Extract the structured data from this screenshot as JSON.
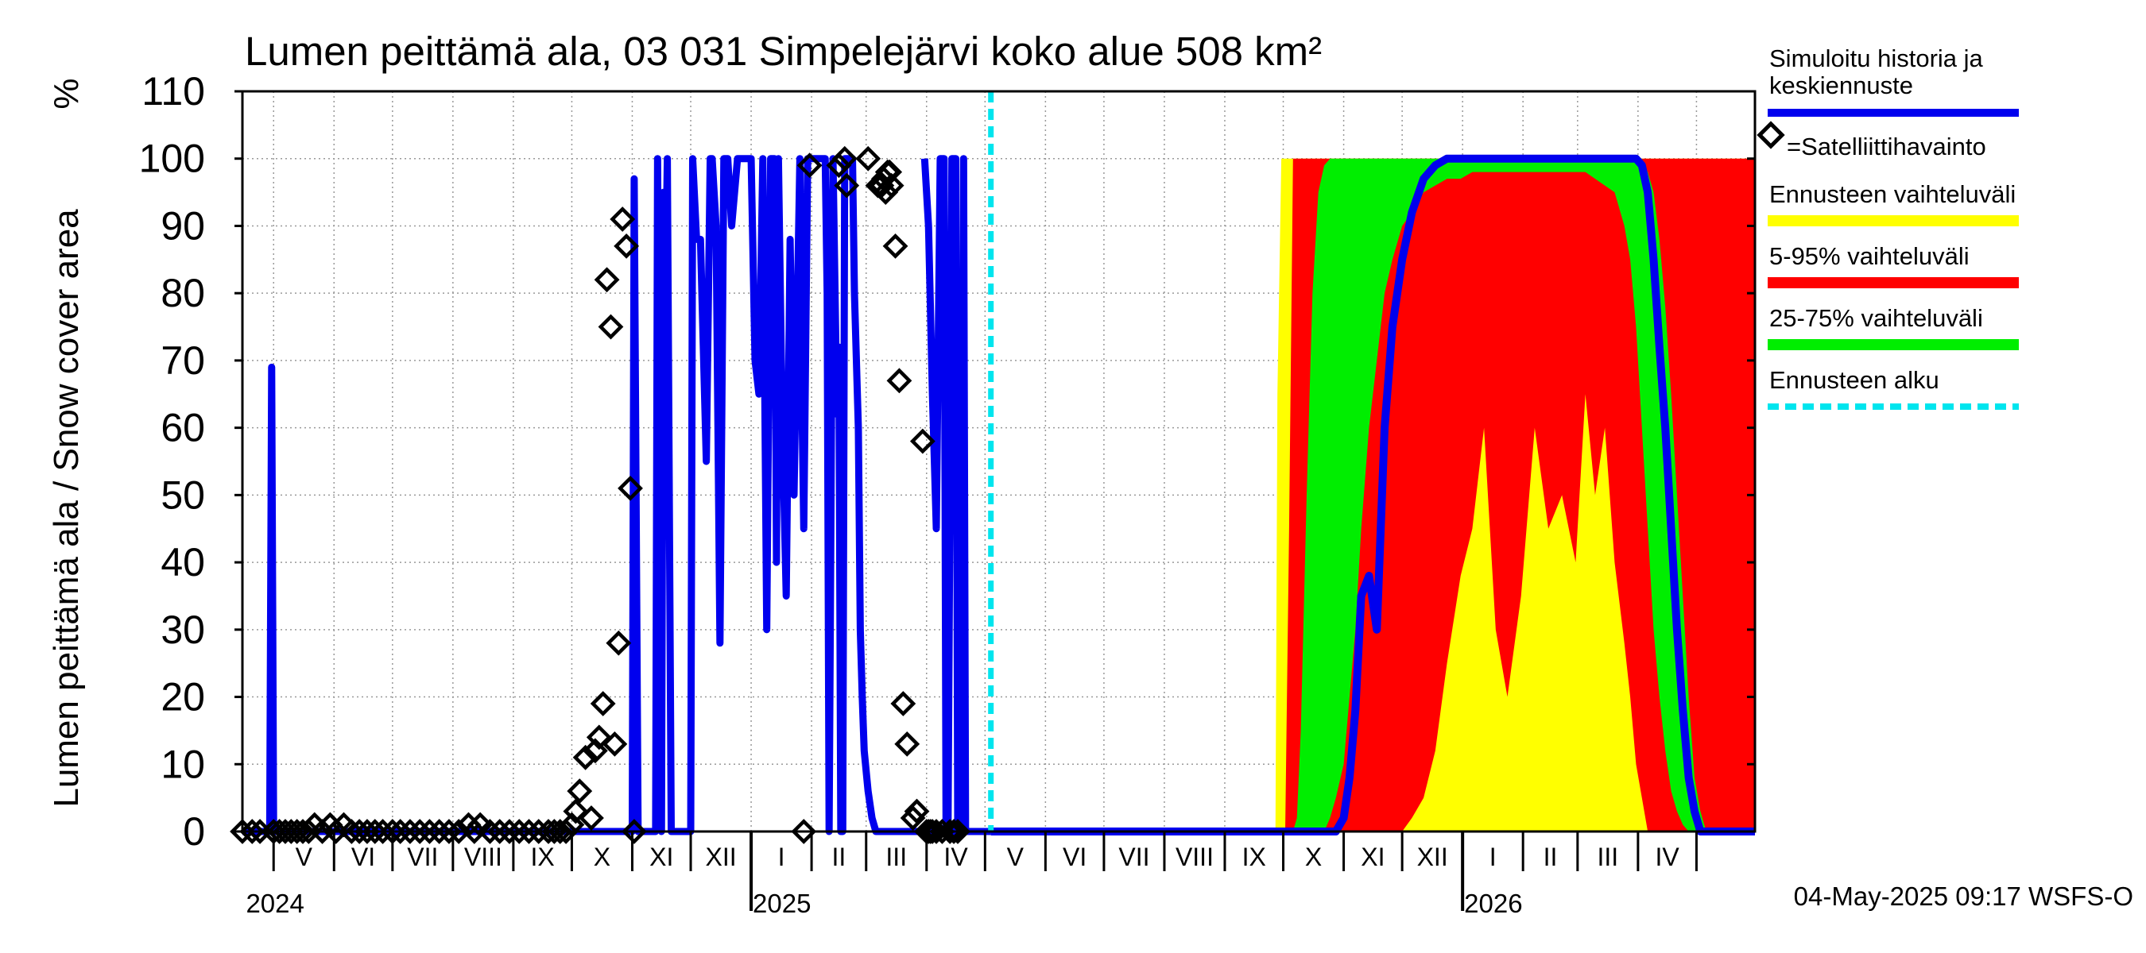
{
  "chart_data": {
    "type": "area",
    "title": "Lumen peittämä ala, 03 031 Simpelejärvi koko alue 508 km²",
    "ylabel": "Lumen peittämä ala / Snow cover area",
    "yunit": "%",
    "ylim": [
      0,
      110
    ],
    "yticks": [
      0,
      10,
      20,
      30,
      40,
      50,
      60,
      70,
      80,
      90,
      100,
      110
    ],
    "xlim": [
      "2024-04-15",
      "2026-05-31"
    ],
    "month_labels": [
      "V",
      "VI",
      "VII",
      "VIII",
      "IX",
      "X",
      "XI",
      "XII",
      "I",
      "II",
      "III",
      "IV",
      "V",
      "VI",
      "VII",
      "VIII",
      "IX",
      "X",
      "XI",
      "XII",
      "I",
      "II",
      "III",
      "IV"
    ],
    "year_labels": [
      "2024",
      "2025",
      "2026"
    ],
    "grid": true,
    "legend_position": "right",
    "legend": {
      "sim": "Simuloitu historia ja keskiennuste",
      "sat": "=Satelliittihavainto",
      "range": "Ennusteen vaihteluväli",
      "p5_95": "5-95% vaihteluväli",
      "p25_75": "25-75% vaihteluväli",
      "start": "Ennusteen alku"
    },
    "forecast_start": "2025-05-04",
    "timestamp": "04-May-2025 09:17 WSFS-O",
    "colors": {
      "sim": "#0000ee",
      "range": "#ffff00",
      "p5_95": "#ff0000",
      "p25_75": "#00ee00",
      "start": "#00e5ee"
    },
    "series_history": {
      "name": "Simuloitu historia ja keskiennuste",
      "x": [
        "2024-04-15",
        "2024-04-29",
        "2024-04-30",
        "2024-05-01",
        "2024-05-02",
        "2024-05-03",
        "2024-10-31",
        "2024-11-01",
        "2024-11-02",
        "2024-11-04",
        "2024-11-06",
        "2024-11-07",
        "2024-11-08",
        "2024-11-13",
        "2024-11-14",
        "2024-11-16",
        "2024-11-17",
        "2024-11-18",
        "2024-11-19",
        "2024-11-21",
        "2024-11-22",
        "2024-11-23",
        "2024-11-25",
        "2024-11-26",
        "2024-12-01",
        "2024-12-02",
        "2024-12-04",
        "2024-12-06",
        "2024-12-09",
        "2024-12-11",
        "2024-12-12",
        "2024-12-14",
        "2024-12-16",
        "2024-12-18",
        "2024-12-19",
        "2024-12-20",
        "2024-12-22",
        "2024-12-25",
        "2024-12-27",
        "2024-12-29",
        "2024-12-31",
        "2025-01-01",
        "2025-01-03",
        "2025-01-05",
        "2025-01-07",
        "2025-01-09",
        "2025-01-11",
        "2025-01-13",
        "2025-01-14",
        "2025-01-15",
        "2025-01-17",
        "2025-01-19",
        "2025-01-21",
        "2025-01-23",
        "2025-01-26",
        "2025-01-27",
        "2025-01-28",
        "2025-01-30",
        "2025-02-01",
        "2025-02-02",
        "2025-02-04",
        "2025-02-06",
        "2025-02-08",
        "2025-02-09",
        "2025-02-10",
        "2025-02-12",
        "2025-02-14",
        "2025-02-15",
        "2025-02-16",
        "2025-02-17",
        "2025-02-18",
        "2025-02-20",
        "2025-02-21",
        "2025-02-22",
        "2025-02-23",
        "2025-02-25",
        "2025-02-26",
        "2025-02-27",
        "2025-02-28",
        "2025-03-02",
        "2025-03-04",
        "2025-03-06",
        "2025-03-08",
        "2025-03-10",
        "2025-03-12",
        "2025-03-14",
        "2025-03-16",
        "2025-03-18",
        "2025-03-19",
        "2025-03-20",
        "2025-03-22",
        "2025-03-24",
        "2025-03-26",
        "2025-03-28",
        "2025-03-30",
        "2025-04-01",
        "2025-04-03",
        "2025-04-05",
        "2025-04-07",
        "2025-04-09",
        "2025-04-10",
        "2025-04-11",
        "2025-04-12",
        "2025-04-13",
        "2025-04-14",
        "2025-04-15",
        "2025-04-16",
        "2025-04-17",
        "2025-04-18",
        "2025-04-19",
        "2025-04-20",
        "2025-04-21",
        "2025-04-22",
        "2025-04-23",
        "2025-05-04"
      ],
      "y": [
        0,
        0,
        69,
        0,
        0,
        0,
        0,
        0,
        97,
        0,
        0,
        0,
        0,
        0,
        100,
        0,
        95,
        80,
        100,
        0,
        0,
        0,
        0,
        0,
        0,
        100,
        88,
        88,
        55,
        100,
        100,
        90,
        28,
        100,
        100,
        100,
        90,
        100,
        100,
        100,
        100,
        100,
        70,
        65,
        100,
        30,
        100,
        100,
        40,
        100,
        60,
        35,
        88,
        50,
        100,
        65,
        45,
        100,
        100,
        100,
        100,
        100,
        100,
        80,
        0,
        100,
        62,
        72,
        0,
        0,
        100,
        100,
        100,
        100,
        80,
        60,
        30,
        20,
        12,
        6,
        2,
        0,
        0,
        0,
        0,
        0,
        0,
        0,
        0,
        0,
        0,
        0,
        0,
        0,
        0,
        0,
        0,
        0,
        0,
        0,
        0,
        0,
        0,
        0,
        0,
        0,
        0,
        0,
        0,
        0,
        0,
        0,
        0,
        0,
        0
      ]
    },
    "series_history_tail": {
      "x": [
        "2025-03-31",
        "2025-04-02",
        "2025-04-04",
        "2025-04-06",
        "2025-04-08",
        "2025-04-10",
        "2025-04-11",
        "2025-04-12",
        "2025-04-14",
        "2025-04-16",
        "2025-04-17",
        "2025-04-18",
        "2025-04-19",
        "2025-04-20",
        "2025-04-21",
        "2025-04-22",
        "2025-05-04"
      ],
      "y": [
        100,
        90,
        65,
        45,
        100,
        100,
        0,
        0,
        100,
        100,
        0,
        0,
        0,
        100,
        0,
        0,
        0
      ]
    },
    "series_satellite": {
      "name": "=Satelliittihavainto",
      "x": [
        "2024-04-15",
        "2024-04-20",
        "2024-04-24",
        "2024-05-01",
        "2024-05-04",
        "2024-05-07",
        "2024-05-10",
        "2024-05-13",
        "2024-05-16",
        "2024-05-19",
        "2024-05-22",
        "2024-05-26",
        "2024-05-30",
        "2024-06-02",
        "2024-06-06",
        "2024-06-10",
        "2024-06-14",
        "2024-06-18",
        "2024-06-22",
        "2024-06-26",
        "2024-07-01",
        "2024-07-05",
        "2024-07-10",
        "2024-07-15",
        "2024-07-20",
        "2024-07-25",
        "2024-07-30",
        "2024-08-04",
        "2024-08-09",
        "2024-08-12",
        "2024-08-15",
        "2024-08-20",
        "2024-08-25",
        "2024-08-30",
        "2024-09-04",
        "2024-09-09",
        "2024-09-14",
        "2024-09-19",
        "2024-09-22",
        "2024-09-25",
        "2024-09-28",
        "2024-10-01",
        "2024-10-03",
        "2024-10-05",
        "2024-10-08",
        "2024-10-11",
        "2024-10-13",
        "2024-10-15",
        "2024-10-17",
        "2024-10-19",
        "2024-10-21",
        "2024-10-23",
        "2024-10-25",
        "2024-10-27",
        "2024-10-29",
        "2024-10-31",
        "2024-11-02",
        "2025-01-28",
        "2025-01-31",
        "2025-02-15",
        "2025-02-18",
        "2025-02-19",
        "2025-03-02",
        "2025-03-07",
        "2025-03-09",
        "2025-03-10",
        "2025-03-11",
        "2025-03-12",
        "2025-03-13",
        "2025-03-14",
        "2025-03-16",
        "2025-03-18",
        "2025-03-20",
        "2025-03-22",
        "2025-03-25",
        "2025-03-27",
        "2025-03-30",
        "2025-04-01",
        "2025-04-02",
        "2025-04-03",
        "2025-04-04",
        "2025-04-06",
        "2025-04-09",
        "2025-04-13",
        "2025-04-15",
        "2025-04-17"
      ],
      "y": [
        0,
        0,
        0,
        0,
        0,
        0,
        0,
        0,
        0,
        0,
        1,
        0,
        1,
        0,
        1,
        0,
        0,
        0,
        0,
        0,
        0,
        0,
        0,
        0,
        0,
        0,
        0,
        0,
        1,
        0,
        1,
        0,
        0,
        0,
        0,
        0,
        0,
        0,
        0,
        0,
        0,
        1,
        3,
        6,
        11,
        2,
        12,
        14,
        19,
        82,
        75,
        13,
        28,
        91,
        87,
        51,
        0,
        0,
        99,
        99,
        100,
        96,
        100,
        96,
        96,
        97,
        95,
        98,
        98,
        96,
        87,
        67,
        19,
        13,
        2,
        3,
        58,
        0,
        0,
        0,
        0,
        0,
        0,
        0,
        0,
        0
      ]
    },
    "forecast_envelope": {
      "x": [
        "2025-05-04",
        "2025-09-27",
        "2025-09-28",
        "2025-09-30",
        "2025-10-02",
        "2025-10-04",
        "2025-10-06",
        "2025-10-08",
        "2025-10-10",
        "2025-10-13",
        "2025-10-16",
        "2025-10-19",
        "2025-10-22",
        "2025-10-25",
        "2025-10-28",
        "2025-11-01",
        "2025-11-04",
        "2025-11-07",
        "2025-11-10",
        "2025-11-14",
        "2025-11-18",
        "2025-11-22",
        "2025-11-26",
        "2025-12-01",
        "2025-12-06",
        "2025-12-12",
        "2025-12-18",
        "2025-12-24",
        "2025-12-31",
        "2026-01-06",
        "2026-01-12",
        "2026-01-18",
        "2026-01-24",
        "2026-01-31",
        "2026-02-07",
        "2026-02-14",
        "2026-02-21",
        "2026-02-28",
        "2026-03-05",
        "2026-03-10",
        "2026-03-15",
        "2026-03-20",
        "2026-03-25",
        "2026-03-28",
        "2026-03-31",
        "2026-04-03",
        "2026-04-06",
        "2026-04-09",
        "2026-04-12",
        "2026-04-15",
        "2026-04-18",
        "2026-04-21",
        "2026-04-24",
        "2026-04-27",
        "2026-04-30",
        "2026-05-03",
        "2026-05-06",
        "2026-05-09",
        "2026-05-12",
        "2026-05-15",
        "2026-05-18",
        "2026-05-22",
        "2026-05-26",
        "2026-05-31"
      ],
      "min": [
        0,
        0,
        0,
        0,
        0,
        0,
        0,
        0,
        0,
        0,
        0,
        0,
        0,
        0,
        0,
        0,
        0,
        0,
        0,
        0,
        0,
        0,
        0,
        0,
        0,
        0,
        0,
        0,
        0,
        0,
        0,
        0,
        0,
        0,
        0,
        0,
        0,
        0,
        0,
        0,
        0,
        0,
        0,
        0,
        0,
        0,
        0,
        0,
        0,
        0,
        0,
        0,
        0,
        0,
        0,
        0,
        0,
        0,
        0,
        0,
        0,
        0,
        0,
        0
      ],
      "max": [
        0,
        0,
        65,
        100,
        100,
        100,
        100,
        100,
        100,
        100,
        100,
        100,
        100,
        100,
        100,
        100,
        100,
        100,
        100,
        100,
        100,
        100,
        100,
        100,
        100,
        100,
        100,
        100,
        100,
        100,
        100,
        100,
        100,
        100,
        100,
        100,
        100,
        100,
        100,
        100,
        100,
        100,
        100,
        100,
        100,
        100,
        100,
        100,
        100,
        100,
        100,
        100,
        100,
        100,
        100,
        100,
        100,
        100,
        100,
        100,
        100,
        100,
        100,
        100
      ],
      "p5": [
        0,
        0,
        0,
        0,
        0,
        0,
        0,
        0,
        0,
        0,
        0,
        0,
        0,
        0,
        0,
        0,
        0,
        0,
        0,
        0,
        0,
        0,
        0,
        0,
        2,
        5,
        12,
        25,
        38,
        45,
        60,
        30,
        20,
        35,
        60,
        45,
        50,
        40,
        65,
        50,
        60,
        40,
        28,
        20,
        10,
        5,
        0,
        0,
        0,
        0,
        0,
        0,
        0,
        0,
        0,
        0,
        0,
        0,
        0,
        0,
        0,
        0,
        0,
        0
      ],
      "p95": [
        0,
        0,
        0,
        0,
        0,
        45,
        100,
        100,
        100,
        100,
        100,
        100,
        100,
        100,
        100,
        100,
        100,
        100,
        100,
        100,
        100,
        100,
        100,
        100,
        100,
        100,
        100,
        100,
        100,
        100,
        100,
        100,
        100,
        100,
        100,
        100,
        100,
        100,
        100,
        100,
        100,
        100,
        100,
        100,
        100,
        100,
        100,
        100,
        100,
        100,
        100,
        100,
        100,
        100,
        100,
        100,
        100,
        100,
        100,
        100,
        100,
        100,
        100,
        100
      ],
      "p25": [
        0,
        0,
        0,
        0,
        0,
        0,
        0,
        0,
        0,
        0,
        0,
        0,
        0,
        2,
        5,
        10,
        20,
        30,
        45,
        60,
        70,
        80,
        85,
        90,
        92,
        95,
        96,
        97,
        97,
        98,
        98,
        98,
        98,
        98,
        98,
        98,
        98,
        98,
        98,
        97,
        96,
        95,
        90,
        85,
        75,
        60,
        45,
        30,
        20,
        12,
        6,
        3,
        1,
        0,
        0,
        0,
        0,
        0,
        0,
        0,
        0,
        0,
        0,
        0
      ],
      "p75": [
        0,
        0,
        0,
        0,
        0,
        0,
        0,
        2,
        15,
        50,
        80,
        95,
        99,
        100,
        100,
        100,
        100,
        100,
        100,
        100,
        100,
        100,
        100,
        100,
        100,
        100,
        100,
        100,
        100,
        100,
        100,
        100,
        100,
        100,
        100,
        100,
        100,
        100,
        100,
        100,
        100,
        100,
        100,
        100,
        100,
        100,
        98,
        95,
        88,
        78,
        65,
        50,
        35,
        20,
        8,
        3,
        0,
        0,
        0,
        0,
        0,
        0,
        0,
        0
      ],
      "median": [
        0,
        0,
        0,
        0,
        0,
        0,
        0,
        0,
        0,
        0,
        0,
        0,
        0,
        0,
        0,
        2,
        8,
        18,
        35,
        38,
        30,
        60,
        75,
        85,
        92,
        97,
        99,
        100,
        100,
        100,
        100,
        100,
        100,
        100,
        100,
        100,
        100,
        100,
        100,
        100,
        100,
        100,
        100,
        100,
        100,
        99,
        95,
        85,
        72,
        60,
        45,
        30,
        18,
        8,
        3,
        0,
        0,
        0,
        0,
        0,
        0,
        0,
        0,
        0
      ]
    }
  }
}
